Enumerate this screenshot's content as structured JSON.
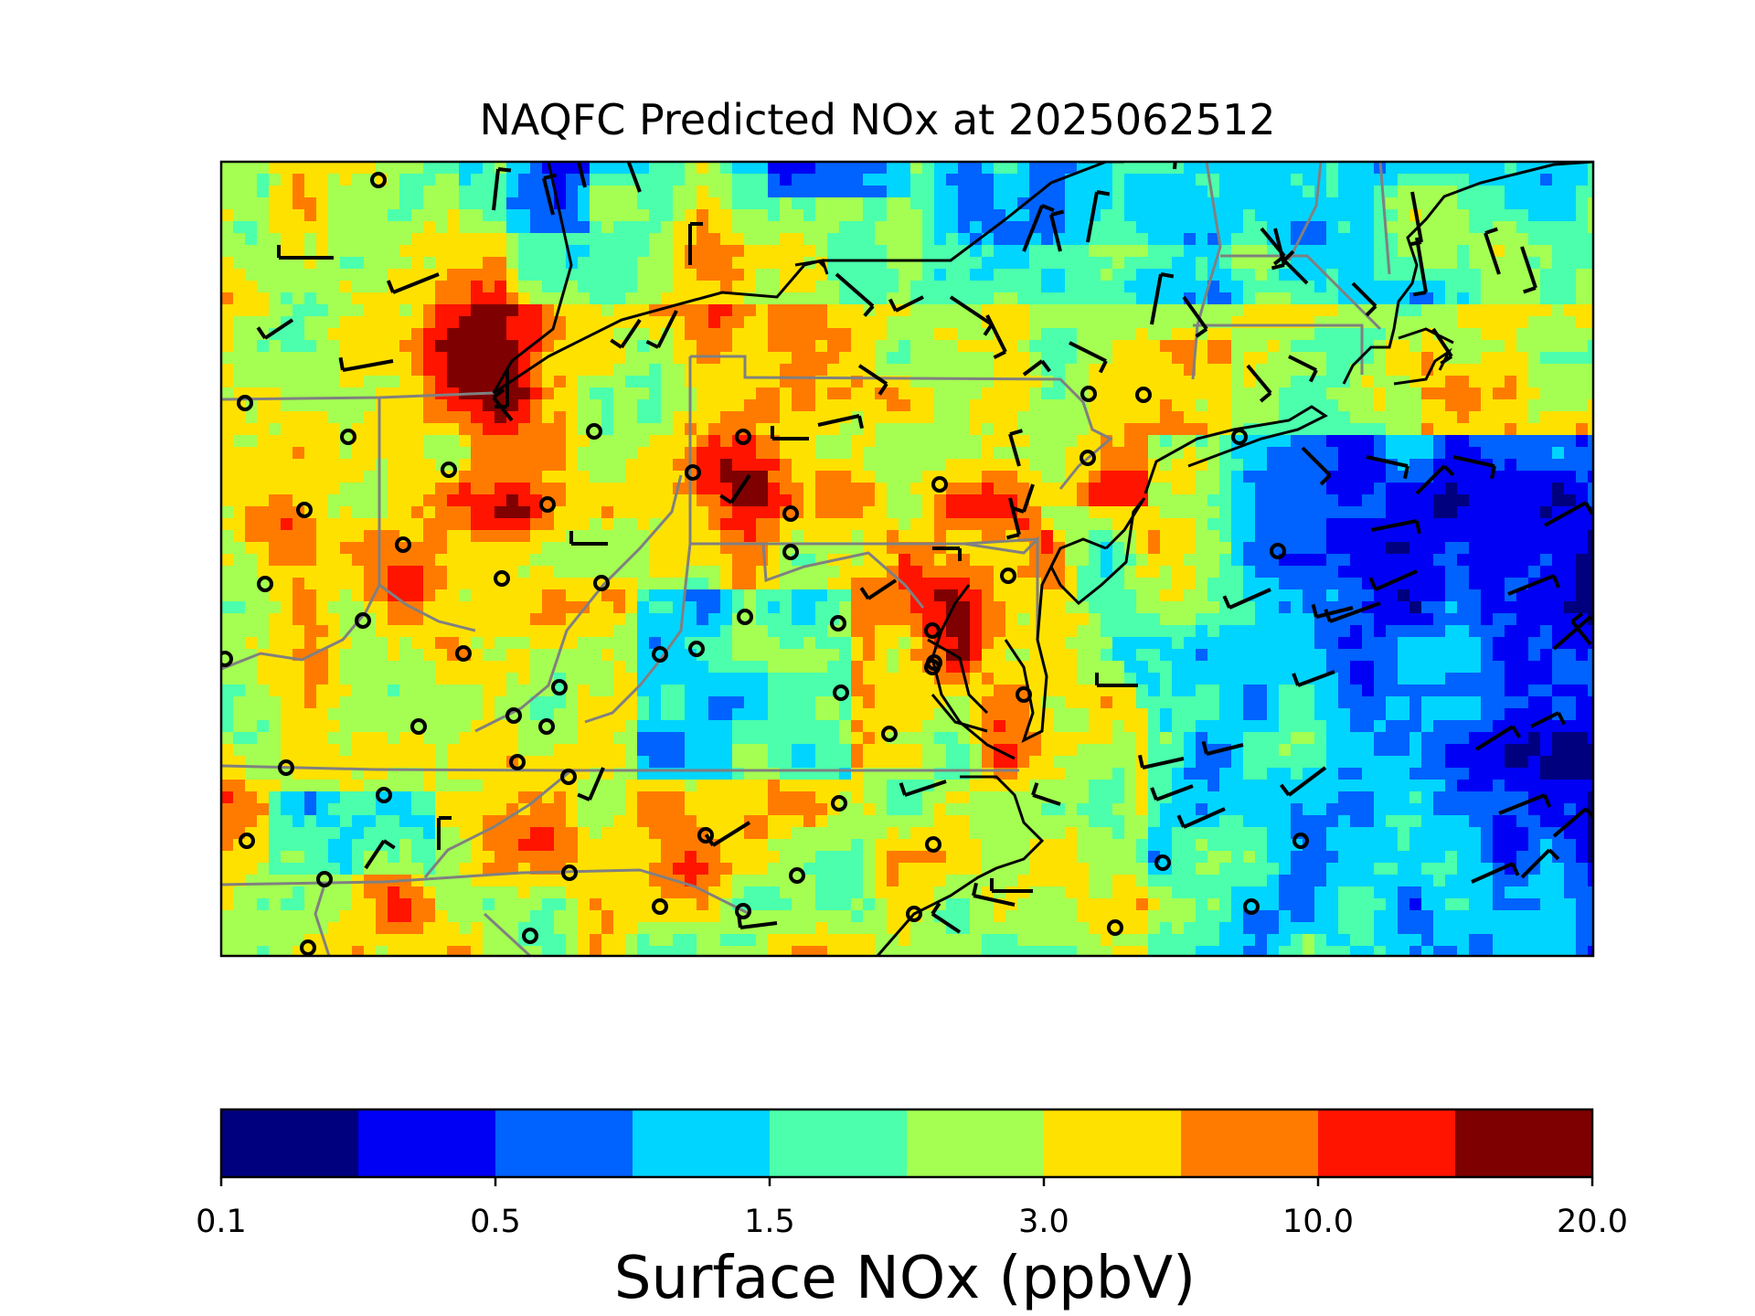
{
  "title": "NAQFC Predicted NOx at 2025062512",
  "colorbar": {
    "label": "Surface NOx (ppbV)",
    "colors": [
      "#00007f",
      "#0000f5",
      "#0062ff",
      "#00d5ff",
      "#4bffac",
      "#a4ff52",
      "#ffe100",
      "#ff7b00",
      "#ff1400",
      "#7f0000"
    ],
    "tick_labels": [
      "0.1",
      "0.5",
      "1.5",
      "3.0",
      "10.0",
      "20.0"
    ]
  },
  "map": {
    "state_border_color": "#808080",
    "coast_color": "#000000",
    "station_marker": "circle",
    "wind_barb": "barb"
  }
}
